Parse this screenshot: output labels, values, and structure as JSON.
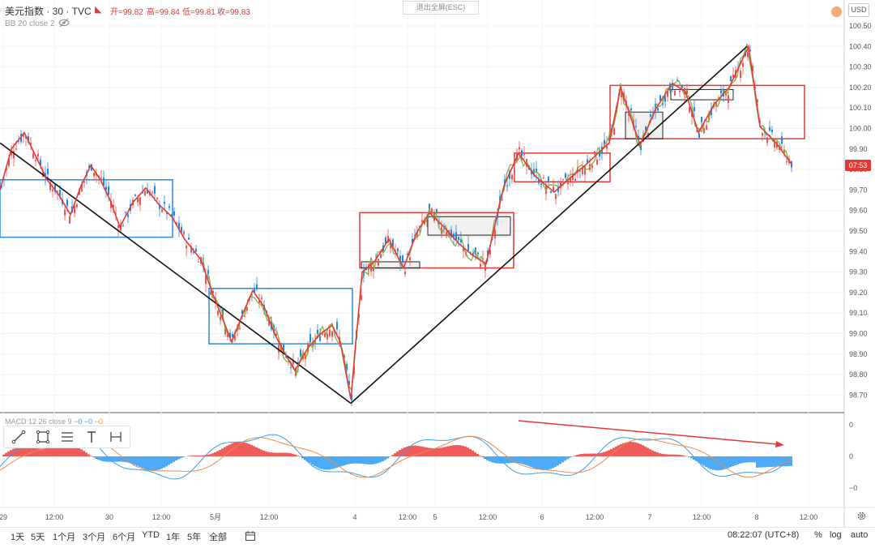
{
  "header": {
    "symbol": "美元指数 · 30 · TVC",
    "open_label": "开=99.82",
    "high_label": "高=99.84",
    "low_label": "低=99.81",
    "close_label": "收=99.83",
    "indicator_bb": "BB 20 close 2",
    "exit_fullscreen": "退出全屏(ESC)",
    "currency": "USD"
  },
  "macd": {
    "label": "MACD 12 26 close 9",
    "v1": "−0",
    "v2": "−0",
    "v3": "−0"
  },
  "current_price_tag": "07:53",
  "colors": {
    "up": "#26a69a",
    "down": "#1e88e5",
    "hist_pos": "#ef5350",
    "hist_neg": "#42a5f5",
    "zigzag": "#e53935",
    "trend": "#111111",
    "box_red": "#e53935",
    "box_blue": "#2e8bd6",
    "signal": "#f08a4b",
    "macd_line": "#3aa0e6",
    "green_line": "#7cae3a"
  },
  "bottom": {
    "ranges": [
      "1天",
      "5天",
      "1个月",
      "3个月",
      "6个月",
      "YTD",
      "1年",
      "5年",
      "全部"
    ],
    "time": "08:22:07 (UTC+8)",
    "pct": "%",
    "log": "log",
    "auto": "auto"
  },
  "toolbar_icons": [
    "trendline-icon",
    "rectangle-icon",
    "text-lines-icon",
    "text-icon",
    "measure-icon"
  ],
  "chart_data": {
    "type": "line",
    "title": "美元指数 · 30 · TVC",
    "ylabel": "USD",
    "ylim": [
      98.62,
      100.56
    ],
    "price_ticks": [
      "100.50",
      "100.40",
      "100.30",
      "100.20",
      "100.10",
      "100.00",
      "99.90",
      "99.80",
      "99.70",
      "99.60",
      "99.50",
      "99.40",
      "99.30",
      "99.20",
      "99.10",
      "99.00",
      "98.90",
      "98.80",
      "98.70"
    ],
    "macd_ticks": [
      "0",
      "0",
      "−0"
    ],
    "time_ticks": [
      "29",
      "12:00",
      "30",
      "12:00",
      "5月",
      "12:00",
      "4",
      "12:00",
      "5",
      "12:00",
      "6",
      "12:00",
      "7",
      "12:00",
      "8",
      "12:00"
    ],
    "last_price": 99.82,
    "zigzag": {
      "x": [
        0,
        14,
        30,
        46,
        58,
        72,
        87,
        100,
        112,
        124,
        136,
        148,
        164,
        180,
        196,
        212,
        228,
        248,
        262,
        276,
        286,
        300,
        312,
        326,
        340,
        352,
        364,
        380,
        396,
        410,
        420,
        433,
        447,
        462,
        480,
        498,
        514,
        530,
        548,
        566,
        584,
        600,
        622,
        640,
        660,
        684,
        704,
        722,
        752,
        766,
        790,
        810,
        830,
        846,
        862,
        882,
        900,
        924,
        938,
        958,
        978
      ],
      "y": [
        99.7,
        99.9,
        99.98,
        99.85,
        99.75,
        99.68,
        99.58,
        99.72,
        99.82,
        99.75,
        99.65,
        99.52,
        99.64,
        99.71,
        99.63,
        99.57,
        99.46,
        99.36,
        99.2,
        99.06,
        98.96,
        99.1,
        99.21,
        99.13,
        98.99,
        98.9,
        98.82,
        98.93,
        99.0,
        99.04,
        98.96,
        98.68,
        99.3,
        99.35,
        99.46,
        99.32,
        99.49,
        99.59,
        99.52,
        99.44,
        99.38,
        99.34,
        99.72,
        99.88,
        99.77,
        99.69,
        99.76,
        99.82,
        99.93,
        100.2,
        99.92,
        100.1,
        100.22,
        100.18,
        99.98,
        100.12,
        100.2,
        100.4,
        100.01,
        99.93,
        99.82
      ]
    },
    "trendlines": [
      {
        "name": "",
        "x": [
          0,
          433
        ],
        "y": [
          99.93,
          98.66
        ]
      },
      {
        "name": "",
        "x": [
          433,
          922
        ],
        "y": [
          98.66,
          100.4
        ]
      }
    ],
    "boxes": [
      {
        "color": "blue",
        "x": [
          0,
          213
        ],
        "y": [
          99.75,
          99.47
        ]
      },
      {
        "color": "blue",
        "x": [
          258,
          435
        ],
        "y": [
          99.22,
          98.95
        ]
      },
      {
        "color": "red",
        "x": [
          444,
          634
        ],
        "y": [
          99.59,
          99.32
        ]
      },
      {
        "color": "red",
        "x": [
          635,
          753
        ],
        "y": [
          99.88,
          99.74
        ]
      },
      {
        "color": "red",
        "x": [
          753,
          993
        ],
        "y": [
          100.21,
          99.95
        ]
      },
      {
        "color": "black",
        "x": [
          446,
          518
        ],
        "y": [
          99.35,
          99.32
        ]
      },
      {
        "color": "black",
        "x": [
          528,
          630
        ],
        "y": [
          99.57,
          99.48
        ]
      },
      {
        "color": "black",
        "x": [
          772,
          818
        ],
        "y": [
          100.08,
          99.95
        ]
      },
      {
        "color": "black",
        "x": [
          828,
          905
        ],
        "y": [
          100.19,
          100.14
        ]
      }
    ]
  }
}
